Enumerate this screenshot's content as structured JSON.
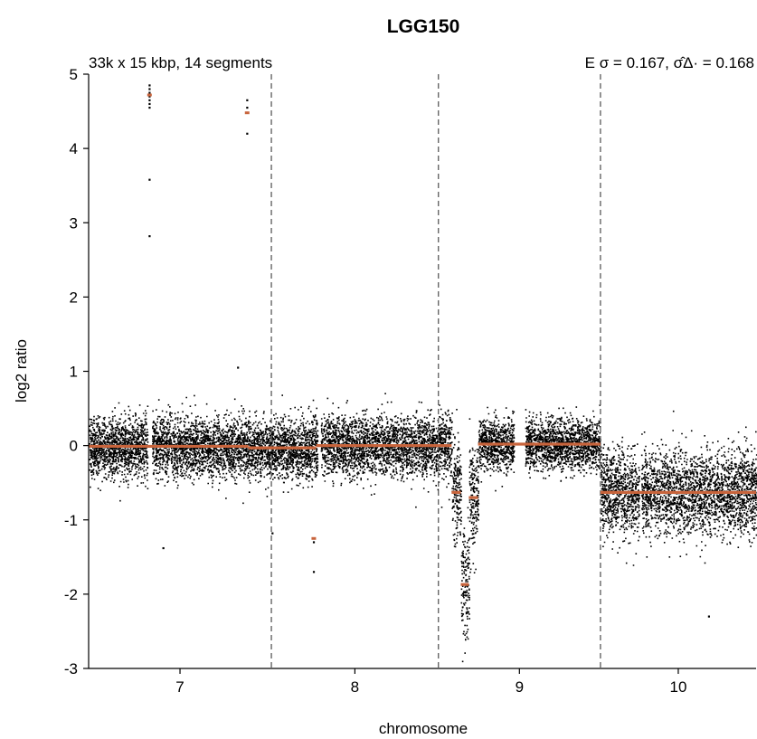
{
  "chart_data": {
    "type": "scatter",
    "title": "LGG150",
    "subtitle_left": "33k x 15 kbp, 14 segments",
    "subtitle_right": "E σ = 0.167, σ̂Δ· = 0.168",
    "xlabel": "chromosome",
    "ylabel": "log2 ratio",
    "ylim": [
      -3,
      5
    ],
    "yticks": [
      {
        "value": 5,
        "label": "5"
      },
      {
        "value": 4,
        "label": "4"
      },
      {
        "value": 3,
        "label": "3"
      },
      {
        "value": 2,
        "label": "2"
      },
      {
        "value": 1,
        "label": "1"
      },
      {
        "value": 0,
        "label": "0"
      },
      {
        "value": -1,
        "label": "-1"
      },
      {
        "value": -2,
        "label": "-2"
      },
      {
        "value": -3,
        "label": "-3"
      }
    ],
    "chromosomes": [
      {
        "label": "7",
        "start_mb": 0,
        "end_mb": 159.1
      },
      {
        "label": "8",
        "start_mb": 159.1,
        "end_mb": 304.5
      },
      {
        "label": "9",
        "start_mb": 304.5,
        "end_mb": 445.6
      },
      {
        "label": "10",
        "start_mb": 445.6,
        "end_mb": 581.1
      }
    ],
    "xlim_mb": [
      0,
      581.1
    ],
    "grid": false,
    "chromosome_boundaries": "dashed gray lines",
    "segment_color": "#c8643c",
    "point_color": "#000000",
    "segments": [
      {
        "start_mb": 0,
        "end_mb": 139,
        "y": -0.01
      },
      {
        "start_mb": 139,
        "end_mb": 198,
        "y": -0.03
      },
      {
        "start_mb": 198,
        "end_mb": 304.5,
        "y": 0.0
      },
      {
        "start_mb": 304.5,
        "end_mb": 316,
        "y": 0.0
      },
      {
        "start_mb": 316,
        "end_mb": 324,
        "y": -0.63
      },
      {
        "start_mb": 324,
        "end_mb": 331,
        "y": -1.87
      },
      {
        "start_mb": 331,
        "end_mb": 339,
        "y": -0.7
      },
      {
        "start_mb": 339,
        "end_mb": 445.6,
        "y": 0.02
      },
      {
        "start_mb": 445.6,
        "end_mb": 581.1,
        "y": -0.63
      }
    ],
    "outliers": [
      {
        "x_mb": 53,
        "y": 4.85
      },
      {
        "x_mb": 53,
        "y": 4.8
      },
      {
        "x_mb": 53,
        "y": 4.75
      },
      {
        "x_mb": 53,
        "y": 4.7
      },
      {
        "x_mb": 53,
        "y": 4.65
      },
      {
        "x_mb": 53,
        "y": 4.6
      },
      {
        "x_mb": 53,
        "y": 4.55
      },
      {
        "x_mb": 53,
        "y": 3.58
      },
      {
        "x_mb": 53,
        "y": 2.82
      },
      {
        "x_mb": 138,
        "y": 4.65
      },
      {
        "x_mb": 138,
        "y": 4.55
      },
      {
        "x_mb": 138,
        "y": 4.2
      },
      {
        "x_mb": 130,
        "y": 1.05
      },
      {
        "x_mb": 196,
        "y": -1.3
      },
      {
        "x_mb": 196,
        "y": -1.7
      },
      {
        "x_mb": 65,
        "y": -1.38
      },
      {
        "x_mb": 160,
        "y": -1.18
      },
      {
        "x_mb": 540,
        "y": -2.3
      }
    ],
    "outlier_segment_marks": [
      {
        "x_mb": 53,
        "y": 4.72
      },
      {
        "x_mb": 138,
        "y": 4.48
      },
      {
        "x_mb": 196,
        "y": -1.25
      }
    ],
    "point_gaps_mb": [
      [
        51,
        55
      ],
      [
        199,
        202
      ],
      [
        370,
        380
      ],
      [
        479,
        481
      ]
    ],
    "point_spread": [
      {
        "start_mb": 0,
        "end_mb": 304.5,
        "sd": 0.2
      },
      {
        "start_mb": 304.5,
        "end_mb": 316,
        "sd": 0.22
      },
      {
        "start_mb": 316,
        "end_mb": 339,
        "sd": 0.35
      },
      {
        "start_mb": 339,
        "end_mb": 445.6,
        "sd": 0.17
      },
      {
        "start_mb": 445.6,
        "end_mb": 581.1,
        "sd": 0.28
      }
    ]
  }
}
